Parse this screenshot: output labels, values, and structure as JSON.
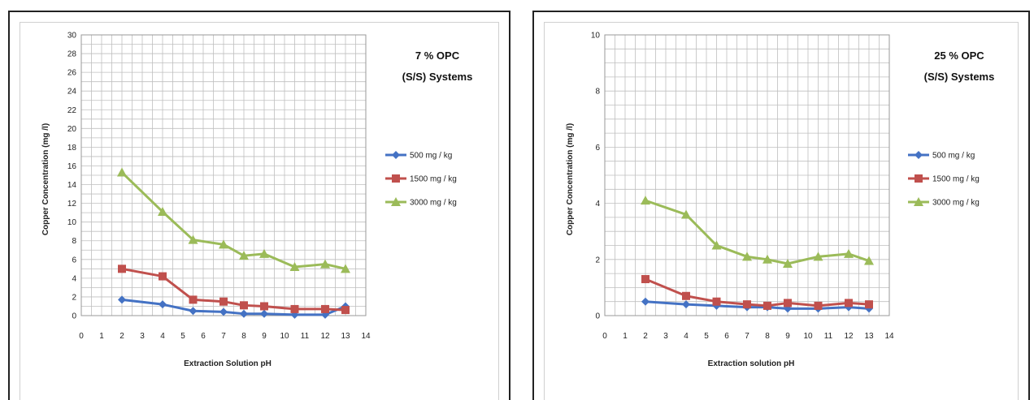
{
  "chart_data": [
    {
      "type": "line",
      "title_lines": [
        "7 % OPC",
        "(S/S) Systems"
      ],
      "xlabel": "Extraction Solution pH",
      "ylabel": "Copper Concentration (mg /l)",
      "xlim": [
        0,
        14
      ],
      "ylim": [
        0,
        30
      ],
      "ystep": 2,
      "xticks": [
        0,
        1,
        2,
        3,
        4,
        5,
        6,
        7,
        8,
        9,
        10,
        11,
        12,
        13,
        14
      ],
      "x": [
        2,
        4,
        5.5,
        7,
        8,
        9,
        10.5,
        12,
        13
      ],
      "grid": true,
      "legend_position": "right",
      "series": [
        {
          "name": "500 mg / kg",
          "color": "#4472c4",
          "marker": "diamond",
          "values": [
            1.7,
            1.2,
            0.5,
            0.4,
            0.2,
            0.2,
            0.1,
            0.1,
            1.0
          ]
        },
        {
          "name": "1500 mg / kg",
          "color": "#c0504d",
          "marker": "square",
          "values": [
            5.0,
            4.2,
            1.7,
            1.5,
            1.1,
            1.0,
            0.7,
            0.7,
            0.6
          ]
        },
        {
          "name": "3000 mg / kg",
          "color": "#9bbb59",
          "marker": "triangle",
          "values": [
            15.3,
            11.1,
            8.1,
            7.6,
            6.4,
            6.6,
            5.2,
            5.5,
            5.0
          ]
        }
      ]
    },
    {
      "type": "line",
      "title_lines": [
        "25 % OPC",
        "(S/S) Systems"
      ],
      "xlabel": "Extraction solution pH",
      "ylabel": "Copper Concentration (mg /l)",
      "xlim": [
        0,
        14
      ],
      "ylim": [
        0,
        10
      ],
      "ystep": 2,
      "xticks": [
        0,
        1,
        2,
        3,
        4,
        5,
        6,
        7,
        8,
        9,
        10,
        11,
        12,
        13,
        14
      ],
      "x": [
        2,
        4,
        5.5,
        7,
        8,
        9,
        10.5,
        12,
        13
      ],
      "grid": true,
      "legend_position": "right",
      "series": [
        {
          "name": "500 mg / kg",
          "color": "#4472c4",
          "marker": "diamond",
          "values": [
            0.5,
            0.4,
            0.35,
            0.3,
            0.3,
            0.25,
            0.25,
            0.3,
            0.25
          ]
        },
        {
          "name": "1500 mg / kg",
          "color": "#c0504d",
          "marker": "square",
          "values": [
            1.3,
            0.7,
            0.5,
            0.4,
            0.35,
            0.45,
            0.35,
            0.45,
            0.4
          ]
        },
        {
          "name": "3000 mg / kg",
          "color": "#9bbb59",
          "marker": "triangle",
          "values": [
            4.1,
            3.6,
            2.5,
            2.1,
            2.0,
            1.85,
            2.1,
            2.2,
            1.95
          ]
        }
      ]
    }
  ]
}
